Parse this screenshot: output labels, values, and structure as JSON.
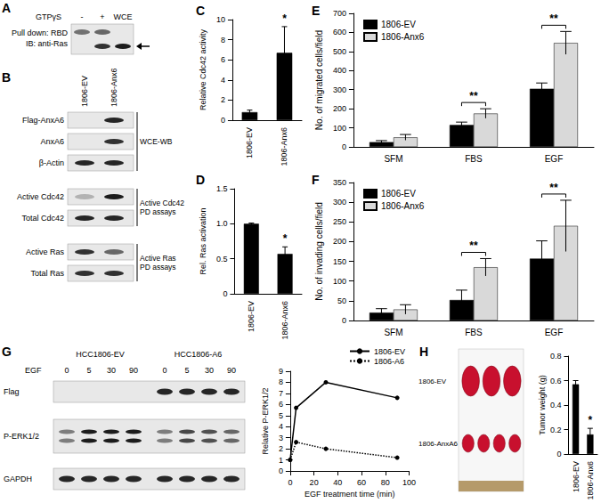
{
  "chart_data": [
    {
      "type": "bar",
      "title": "C",
      "categories": [
        "1806-EV",
        "1806-Anx6"
      ],
      "values": [
        0.8,
        6.7
      ],
      "errors": [
        0.2,
        2.6
      ],
      "color": "#000000",
      "ylabel": "Relative Cdc42 activity",
      "ylim": [
        0,
        10
      ],
      "yticks": [
        0,
        2,
        4,
        6,
        8,
        10
      ],
      "grid": false,
      "annotations": [
        {
          "text": "*",
          "category": "1806-Anx6"
        }
      ]
    },
    {
      "type": "bar",
      "title": "D",
      "categories": [
        "1806-EV",
        "1806-Anx6"
      ],
      "values": [
        1.0,
        0.57
      ],
      "errors": [
        0.01,
        0.1
      ],
      "color": "#000000",
      "ylabel": "Rel. Ras activation",
      "ylim": [
        0,
        1.5
      ],
      "yticks": [
        0,
        0.5,
        {
          "value": 1,
          "label": "1.0"
        },
        1.5
      ],
      "grid": false,
      "annotations": [
        {
          "text": "*",
          "category": "1806-Anx6"
        }
      ]
    },
    {
      "type": "bar",
      "title": "E",
      "categories": [
        "SFM",
        "FBS",
        "EGF"
      ],
      "series": [
        {
          "name": "1806-EV",
          "color": "#000000",
          "values": [
            25,
            115,
            305
          ],
          "errors": [
            8,
            15,
            30
          ]
        },
        {
          "name": "1806-Anx6",
          "color": "#d9d9d9",
          "values": [
            50,
            175,
            545
          ],
          "errors": [
            15,
            25,
            60
          ]
        }
      ],
      "ylabel": "No. of migrated cells/field",
      "ylim": [
        0,
        700
      ],
      "yticks": [
        0,
        100,
        200,
        300,
        400,
        500,
        600,
        700
      ],
      "grid": false,
      "legend": "upper left",
      "annotations": [
        {
          "text": "**",
          "category": "FBS"
        },
        {
          "text": "**",
          "category": "EGF"
        }
      ]
    },
    {
      "type": "bar",
      "title": "F",
      "categories": [
        "SFM",
        "FBS",
        "EGF"
      ],
      "series": [
        {
          "name": "1806-EV",
          "color": "#000000",
          "values": [
            20,
            52,
            157
          ],
          "errors": [
            10,
            25,
            45
          ]
        },
        {
          "name": "1806-Anx6",
          "color": "#d9d9d9",
          "values": [
            28,
            135,
            240
          ],
          "errors": [
            12,
            22,
            65
          ]
        }
      ],
      "ylabel": "No. of invading cells/field",
      "ylim": [
        0,
        350
      ],
      "yticks": [
        0,
        50,
        100,
        150,
        200,
        250,
        300,
        350
      ],
      "grid": false,
      "legend": "upper left",
      "annotations": [
        {
          "text": "**",
          "category": "FBS"
        },
        {
          "text": "**",
          "category": "EGF"
        }
      ]
    },
    {
      "type": "line",
      "x": [
        0,
        5,
        30,
        90
      ],
      "series": [
        {
          "name": "1806-EV",
          "color": "#000000",
          "values": [
            1,
            5.7,
            8,
            6.6
          ],
          "marker": "circle",
          "line_style": "solid"
        },
        {
          "name": "1806-A6",
          "color": "#000000",
          "values": [
            1,
            2.6,
            2,
            1.2
          ],
          "marker": "circle",
          "line_style": "dotted"
        }
      ],
      "xlabel": "EGF treatment time (min)",
      "ylabel": "Relative P-ERK1/2",
      "xlim": [
        0,
        100
      ],
      "xticks": [
        0,
        20,
        40,
        60,
        80,
        100
      ],
      "ylim": [
        0,
        9
      ],
      "yticks": [
        0,
        1,
        2,
        3,
        4,
        5,
        6,
        7,
        8,
        9
      ],
      "grid": false,
      "legend": "upper right"
    },
    {
      "type": "bar",
      "categories": [
        "1806-EV",
        "1806-Anx6"
      ],
      "values": [
        0.57,
        0.16
      ],
      "errors": [
        0.03,
        0.05
      ],
      "color": "#000000",
      "ylabel": "Tumor weight (g)",
      "ylim": [
        0,
        0.8
      ],
      "yticks": [
        0,
        0.2,
        0.4,
        0.6,
        0.8
      ],
      "grid": false,
      "annotations": [
        {
          "text": "*",
          "category": "1806-Anx6"
        }
      ]
    }
  ],
  "panel_A": {
    "letter": "A",
    "header": "GTPγS",
    "lanes": [
      "-",
      "+",
      "WCE"
    ],
    "labels": [
      "Pull down: RBD",
      "IB: anti-Ras"
    ],
    "bands": [
      [
        0.55,
        0.6,
        0
      ],
      [
        0,
        0.85,
        0.95
      ]
    ]
  },
  "panel_B": {
    "letter": "B",
    "lanes": [
      "1806-EV",
      "1806-Anx6"
    ],
    "groups": [
      {
        "label": [
          "WCE-WB"
        ],
        "rows": [
          {
            "label": "Flag-AnxA6",
            "bands": [
              0,
              0.9
            ]
          },
          {
            "label": "AnxA6",
            "bands": [
              0,
              0.85
            ]
          },
          {
            "label": "β-Actin",
            "bands": [
              0.9,
              0.9
            ]
          }
        ]
      },
      {
        "label": [
          "Active Cdc42",
          "PD assays"
        ],
        "rows": [
          {
            "label": "Active Cdc42",
            "bands": [
              0.25,
              0.95
            ]
          },
          {
            "label": "Total Cdc42",
            "bands": [
              0.9,
              0.9
            ]
          }
        ]
      },
      {
        "label": [
          "Active Ras",
          "PD assays"
        ],
        "rows": [
          {
            "label": "Active Ras",
            "bands": [
              0.85,
              0.6
            ]
          },
          {
            "label": "Total Ras",
            "bands": [
              0.85,
              0.85
            ]
          }
        ]
      }
    ]
  },
  "panel_G": {
    "letter": "G",
    "lane_header": "EGF",
    "groups": [
      {
        "label": "HCC1806-EV",
        "lanes": [
          0,
          5,
          30,
          90
        ]
      },
      {
        "label": "HCC1806-A6",
        "lanes": [
          0,
          5,
          30,
          90
        ]
      }
    ],
    "rows": [
      {
        "label": "Flag",
        "bands": [
          0,
          0,
          0,
          0,
          0.9,
          0.9,
          0.9,
          0.9
        ]
      },
      {
        "label": "P-ERK1/2",
        "bands": [
          0.5,
          0.95,
          0.95,
          0.95,
          0.5,
          0.75,
          0.7,
          0.6
        ]
      },
      {
        "label": "GAPDH",
        "bands": [
          0.9,
          0.9,
          0.9,
          0.9,
          0.9,
          0.9,
          0.9,
          0.9
        ]
      }
    ]
  },
  "panel_H": {
    "letter": "H",
    "rows": [
      {
        "label": "1806-EV",
        "tumors": 3
      },
      {
        "label": "1806-AnxA6",
        "tumors": 4
      }
    ]
  }
}
